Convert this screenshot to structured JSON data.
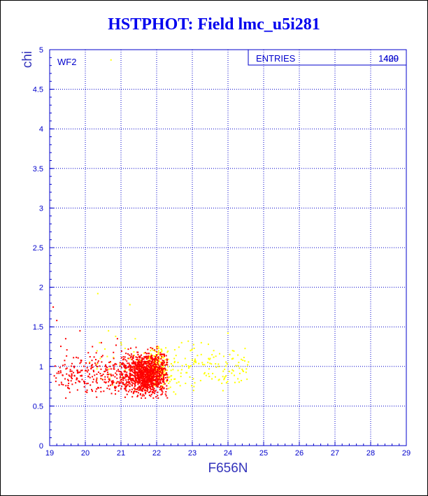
{
  "chart_data": {
    "type": "scatter",
    "title": "HSTPHOT: Field lmc_u5i281",
    "xlabel": "F656N",
    "ylabel": "chi",
    "xlim": [
      19,
      29
    ],
    "ylim": [
      0,
      5
    ],
    "x_ticks": [
      "19",
      "20",
      "21",
      "22",
      "23",
      "24",
      "25",
      "26",
      "27",
      "28",
      "29"
    ],
    "y_ticks": [
      "0",
      "0.5",
      "1",
      "1.5",
      "2",
      "2.5",
      "3",
      "3.5",
      "4",
      "4.5",
      "5"
    ],
    "grid": true,
    "annotation": "WF2",
    "stats_box": {
      "label": "ENTRIES",
      "values": [
        "1409",
        "420"
      ]
    },
    "series": [
      {
        "color": "#ffff00",
        "points": [
          [
            20.72,
            4.87
          ],
          [
            20.35,
            1.92
          ],
          [
            21.25,
            1.78
          ],
          [
            20.65,
            1.45
          ],
          [
            20.85,
            1.38
          ],
          [
            20.4,
            1.3
          ],
          [
            20.55,
            1.22
          ],
          [
            21.0,
            1.3
          ],
          [
            21.4,
            1.35
          ],
          [
            22.05,
            1.25
          ],
          [
            22.3,
            1.18
          ],
          [
            22.5,
            1.05
          ],
          [
            22.6,
            0.95
          ],
          [
            22.8,
            1.1
          ],
          [
            22.95,
            1.2
          ],
          [
            23.1,
            1.05
          ],
          [
            23.25,
            1.15
          ],
          [
            23.35,
            0.92
          ],
          [
            23.5,
            1.1
          ],
          [
            23.6,
            1.2
          ],
          [
            23.75,
            1.0
          ],
          [
            23.9,
            0.85
          ],
          [
            24.05,
            1.15
          ],
          [
            24.3,
            1.05
          ],
          [
            24.55,
            1.02
          ],
          [
            22.7,
            1.3
          ],
          [
            23.45,
            1.28
          ],
          [
            24.0,
            1.42
          ],
          [
            22.4,
            0.88
          ],
          [
            22.9,
            0.98
          ]
        ],
        "cloud": {
          "count": 390,
          "x_range": [
            20.0,
            24.6
          ],
          "y_range": [
            0.65,
            1.45
          ],
          "center": [
            21.9,
            0.98
          ]
        }
      },
      {
        "color": "#ff0000",
        "points": [
          [
            19.1,
            1.75
          ],
          [
            19.2,
            1.58
          ],
          [
            19.45,
            1.35
          ],
          [
            19.85,
            1.45
          ],
          [
            19.55,
            0.72
          ],
          [
            19.7,
            0.88
          ],
          [
            20.05,
            0.7
          ],
          [
            20.2,
            1.25
          ],
          [
            20.45,
            1.3
          ],
          [
            20.9,
            1.35
          ],
          [
            22.2,
            0.72
          ],
          [
            22.25,
            0.65
          ]
        ],
        "cloud": {
          "count": 1397,
          "x_range": [
            19.1,
            22.3
          ],
          "y_range": [
            0.6,
            1.38
          ],
          "center": [
            21.7,
            0.9
          ]
        }
      }
    ]
  }
}
